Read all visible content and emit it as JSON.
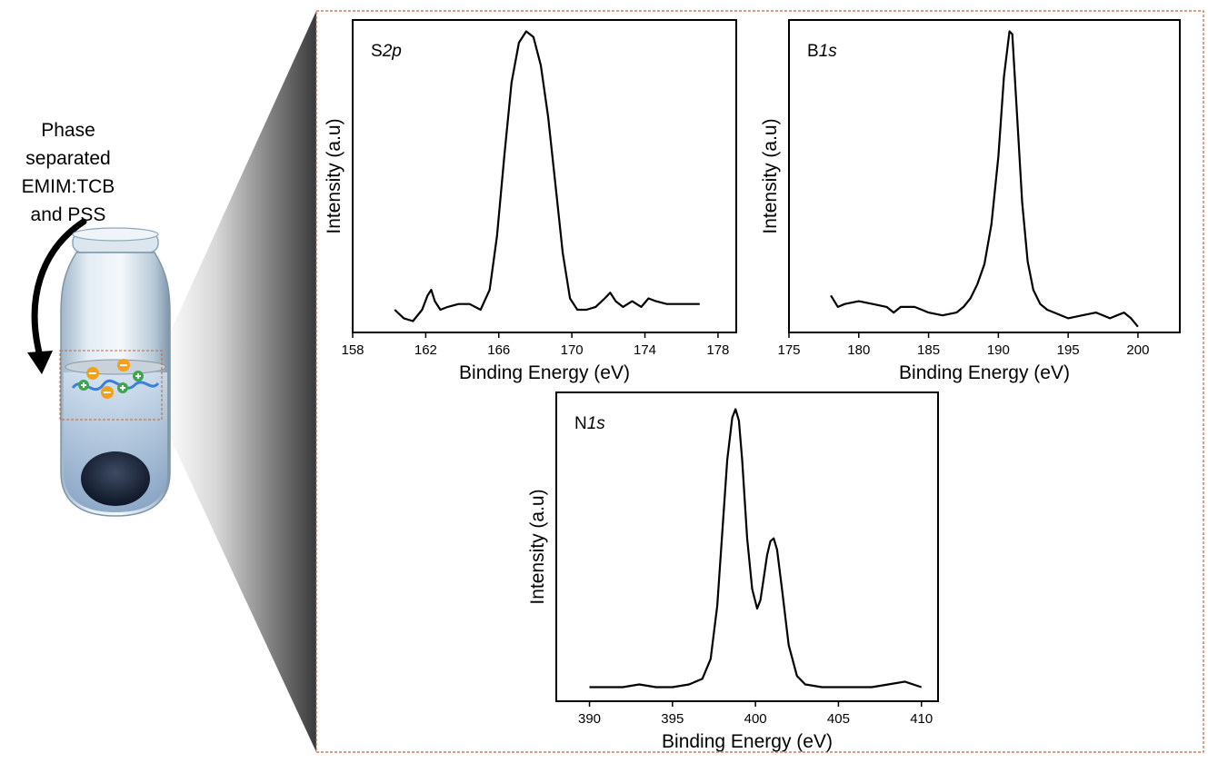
{
  "illustration": {
    "label_lines": [
      "Phase",
      "separated",
      "EMIM:TCB",
      "and PSS"
    ],
    "vial_icon": "vial-with-phase-separated-layers",
    "arrow_icon": "curved-arrow-down-icon"
  },
  "colors": {
    "frame_border": "#c8622e",
    "line": "#000000",
    "anion": "#f0a21c",
    "cation": "#3ca64a",
    "polymer": "#3b7fd6"
  },
  "chart_data": [
    {
      "type": "line",
      "panel_label": {
        "prefix": "S",
        "italic": "2p"
      },
      "xlabel": "Binding Energy (eV)",
      "ylabel": "Intensity (a.u)",
      "xlim": [
        158,
        179
      ],
      "ylim": [
        0,
        1.1
      ],
      "xticks": [
        158,
        162,
        166,
        170,
        174,
        178
      ],
      "series": [
        {
          "x": [
            160.3,
            160.8,
            161.3,
            161.8,
            162.1,
            162.3,
            162.5,
            162.8,
            163.2,
            163.8,
            164.4,
            165.0,
            165.5,
            165.9,
            166.3,
            166.7,
            167.1,
            167.5,
            167.9,
            168.3,
            168.7,
            169.1,
            169.5,
            169.9,
            170.3,
            170.8,
            171.3,
            171.8,
            172.1,
            172.4,
            172.8,
            173.3,
            173.8,
            174.2,
            174.6,
            175.2,
            176.0,
            177.0
          ],
          "y": [
            0.08,
            0.05,
            0.04,
            0.08,
            0.13,
            0.15,
            0.11,
            0.08,
            0.09,
            0.1,
            0.1,
            0.08,
            0.15,
            0.34,
            0.62,
            0.88,
            1.02,
            1.06,
            1.04,
            0.94,
            0.76,
            0.52,
            0.28,
            0.12,
            0.08,
            0.08,
            0.09,
            0.12,
            0.14,
            0.11,
            0.09,
            0.11,
            0.09,
            0.12,
            0.11,
            0.1,
            0.1,
            0.1
          ]
        }
      ]
    },
    {
      "type": "line",
      "panel_label": {
        "prefix": "B",
        "italic": "1s"
      },
      "xlabel": "Binding Energy (eV)",
      "ylabel": "Intensity (a.u)",
      "xlim": [
        175,
        203
      ],
      "ylim": [
        0,
        1.1
      ],
      "xticks": [
        175,
        180,
        185,
        190,
        195,
        200
      ],
      "series": [
        {
          "x": [
            178.0,
            178.5,
            179.0,
            180.0,
            181.0,
            182.0,
            182.5,
            183.0,
            184.0,
            185.0,
            186.0,
            187.0,
            187.5,
            188.0,
            188.5,
            189.0,
            189.5,
            190.0,
            190.4,
            190.8,
            191.0,
            191.3,
            191.7,
            192.1,
            192.5,
            193.0,
            193.5,
            194.0,
            195.0,
            196.0,
            197.0,
            198.0,
            198.5,
            199.0,
            199.5,
            200.0
          ],
          "y": [
            0.13,
            0.09,
            0.1,
            0.11,
            0.1,
            0.09,
            0.07,
            0.09,
            0.09,
            0.07,
            0.06,
            0.07,
            0.09,
            0.12,
            0.17,
            0.24,
            0.38,
            0.62,
            0.9,
            1.06,
            1.05,
            0.8,
            0.46,
            0.25,
            0.15,
            0.1,
            0.08,
            0.07,
            0.05,
            0.06,
            0.07,
            0.05,
            0.06,
            0.07,
            0.05,
            0.02
          ]
        }
      ]
    },
    {
      "type": "line",
      "panel_label": {
        "prefix": "N",
        "italic": "1s"
      },
      "xlabel": "Binding Energy (eV)",
      "ylabel": "Intensity (a.u)",
      "xlim": [
        388,
        411
      ],
      "ylim": [
        0,
        1.1
      ],
      "xticks": [
        390,
        395,
        400,
        405,
        410
      ],
      "series": [
        {
          "x": [
            390.0,
            391.0,
            392.0,
            393.0,
            394.0,
            395.0,
            396.0,
            396.8,
            397.3,
            397.7,
            398.0,
            398.3,
            398.6,
            398.8,
            399.0,
            399.2,
            399.5,
            399.8,
            400.1,
            400.3,
            400.5,
            400.7,
            400.9,
            401.1,
            401.3,
            401.6,
            402.0,
            402.5,
            403.0,
            404.0,
            405.0,
            406.0,
            407.0,
            408.0,
            409.0,
            410.0
          ],
          "y": [
            0.05,
            0.05,
            0.05,
            0.06,
            0.05,
            0.05,
            0.06,
            0.08,
            0.15,
            0.34,
            0.6,
            0.86,
            1.01,
            1.04,
            1.0,
            0.86,
            0.58,
            0.4,
            0.33,
            0.36,
            0.44,
            0.52,
            0.57,
            0.58,
            0.54,
            0.4,
            0.2,
            0.09,
            0.06,
            0.05,
            0.05,
            0.05,
            0.05,
            0.06,
            0.07,
            0.05
          ]
        }
      ]
    }
  ]
}
